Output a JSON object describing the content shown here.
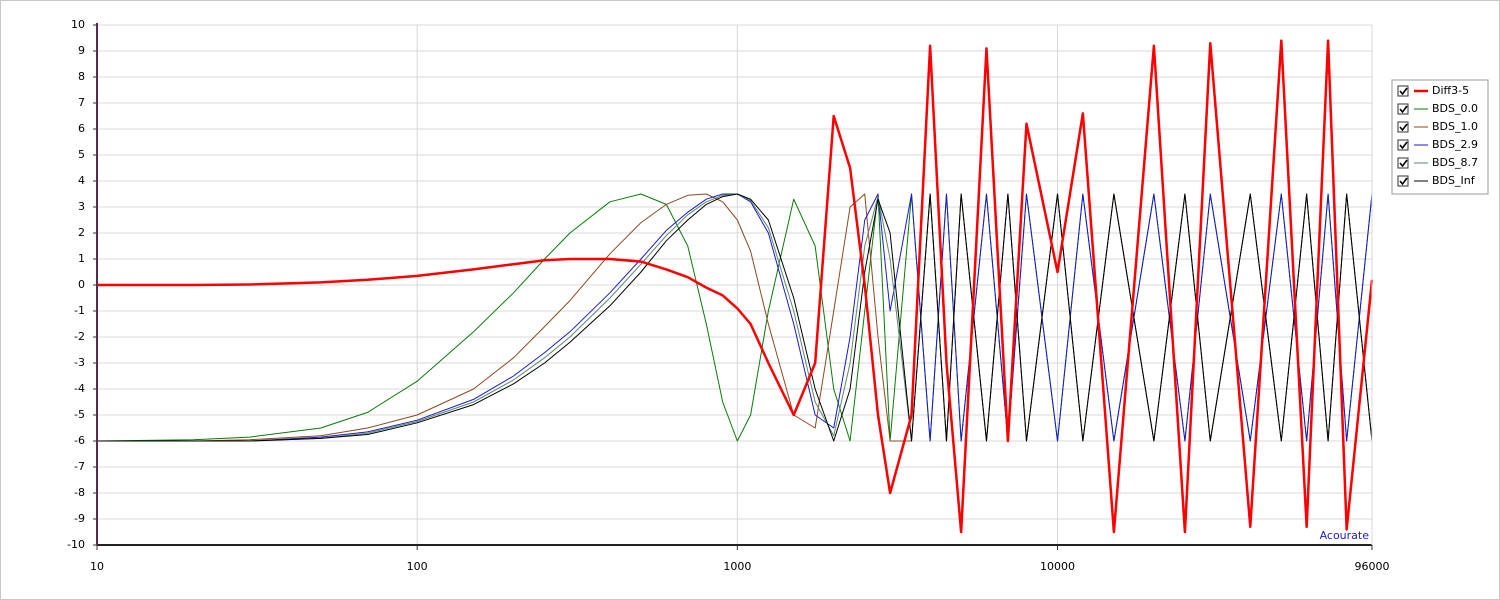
{
  "chart_data": {
    "type": "line",
    "log_x": true,
    "grid": true,
    "legend": "right",
    "annotation": "Acourate",
    "annotation_color": "#1a1ad0",
    "xlim": [
      10,
      96000
    ],
    "xticks": [
      10,
      100,
      1000,
      10000,
      96000
    ],
    "ylim": [
      -10,
      10
    ],
    "yticks": [
      -10,
      -9,
      -8,
      -7,
      -6,
      -5,
      -4,
      -3,
      -2,
      -1,
      0,
      1,
      2,
      3,
      4,
      5,
      6,
      7,
      8,
      9,
      10
    ],
    "x": [
      10,
      20,
      30,
      50,
      70,
      100,
      150,
      200,
      250,
      300,
      400,
      500,
      600,
      700,
      800,
      900,
      1000,
      1100,
      1250,
      1500,
      1750,
      2000,
      2250,
      2500,
      2750,
      3000,
      3500,
      4000,
      4500,
      5000,
      6000,
      7000,
      8000,
      10000,
      12000,
      15000,
      20000,
      25000,
      30000,
      40000,
      50000,
      60000,
      70000,
      80000,
      96000
    ],
    "series": [
      {
        "name": "Diff3-5",
        "color": "#ff0000",
        "width": 2.5,
        "values": [
          0,
          0,
          0.02,
          0.1,
          0.2,
          0.35,
          0.6,
          0.8,
          0.95,
          1.0,
          1.0,
          0.9,
          0.6,
          0.3,
          -0.1,
          -0.4,
          -0.9,
          -1.5,
          -3,
          -5,
          -3,
          6.5,
          4.5,
          0,
          -5,
          -8,
          -5,
          9.2,
          -3,
          -9.5,
          9.1,
          -6,
          6.2,
          0.5,
          6.6,
          -9.5,
          9.2,
          -9.5,
          9.3,
          -9.3,
          9.4,
          -9.3,
          9.4,
          -9.4,
          0.2
        ]
      },
      {
        "name": "BDS_0.0",
        "color": "#0a7a0a",
        "width": 1,
        "values": [
          -6,
          -5.95,
          -5.85,
          -5.5,
          -4.9,
          -3.7,
          -1.8,
          -0.3,
          1.0,
          2.0,
          3.2,
          3.5,
          3.1,
          1.5,
          -1.5,
          -4.5,
          -6,
          -5,
          -1,
          3.3,
          1.5,
          -4,
          -6,
          -1,
          3.5,
          -6,
          3.5,
          -6,
          3.5,
          -6,
          3.5,
          -6,
          3.5,
          -6,
          3.5,
          -6,
          3.5,
          -6,
          3.5,
          -6,
          3.5,
          -6,
          3.5,
          -6,
          3.5
        ]
      },
      {
        "name": "BDS_1.0",
        "color": "#8b4a20",
        "width": 1,
        "values": [
          -6,
          -6,
          -5.95,
          -5.8,
          -5.5,
          -5,
          -4,
          -2.8,
          -1.6,
          -0.6,
          1.2,
          2.4,
          3.1,
          3.45,
          3.5,
          3.2,
          2.5,
          1.3,
          -1.5,
          -5,
          -5.5,
          -1,
          3,
          3.5,
          -2,
          -6,
          -6,
          3.5,
          -6,
          3.5,
          -6,
          3.5,
          -6,
          3.5,
          -6,
          3.5,
          -6,
          3.5,
          -6,
          3.5,
          -6,
          3.5,
          -6,
          3.5,
          -6
        ]
      },
      {
        "name": "BDS_2.9",
        "color": "#1a1ad0",
        "width": 1,
        "values": [
          -6,
          -6,
          -6,
          -5.85,
          -5.65,
          -5.2,
          -4.4,
          -3.5,
          -2.6,
          -1.8,
          -0.3,
          1.0,
          2.1,
          2.8,
          3.3,
          3.5,
          3.5,
          3.2,
          2,
          -1.5,
          -5,
          -5.5,
          -2,
          2.5,
          3.5,
          -1,
          3.5,
          -6,
          3.5,
          -6,
          3.5,
          -6,
          3.5,
          -6,
          3.5,
          -6,
          3.5,
          -6,
          3.5,
          -6,
          3.5,
          -6,
          3.5,
          -6,
          3.5
        ]
      },
      {
        "name": "BDS_8.7",
        "color": "#5a8a6a",
        "width": 1,
        "values": [
          -6,
          -6,
          -6,
          -5.9,
          -5.7,
          -5.25,
          -4.5,
          -3.65,
          -2.8,
          -2.0,
          -0.5,
          0.8,
          1.9,
          2.7,
          3.2,
          3.45,
          3.5,
          3.25,
          2.2,
          -1,
          -4.5,
          -5.8,
          -3,
          1.5,
          3.4,
          1,
          -6,
          3.5,
          -6,
          3.5,
          -6,
          3.5,
          -6,
          3.5,
          -6,
          3.5,
          -6,
          3.5,
          -6,
          3.5,
          -6,
          3.5,
          -6,
          3.5,
          -6
        ]
      },
      {
        "name": "BDS_Inf",
        "color": "#000000",
        "width": 1,
        "values": [
          -6,
          -6,
          -6,
          -5.9,
          -5.75,
          -5.3,
          -4.6,
          -3.8,
          -3,
          -2.2,
          -0.8,
          0.5,
          1.7,
          2.5,
          3.1,
          3.4,
          3.5,
          3.3,
          2.5,
          -0.5,
          -4,
          -6,
          -4,
          0.5,
          3.3,
          2,
          -6,
          3.5,
          -6,
          3.5,
          -6,
          3.5,
          -6,
          3.5,
          -6,
          3.5,
          -6,
          3.5,
          -6,
          3.5,
          -6,
          3.5,
          -6,
          3.5,
          -6
        ]
      }
    ]
  }
}
